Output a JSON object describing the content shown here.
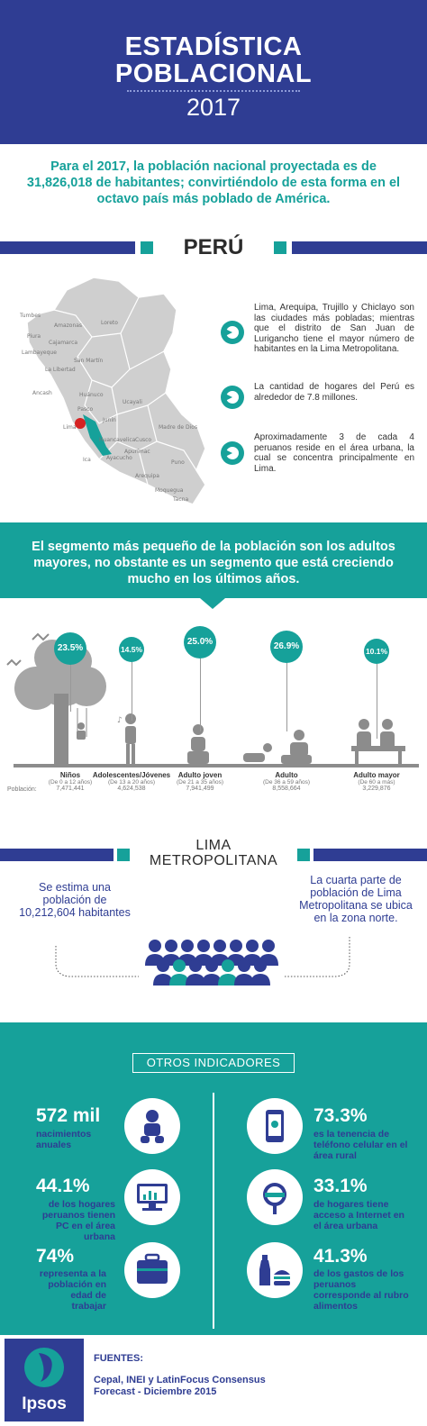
{
  "header": {
    "line1": "ESTADÍSTICA",
    "line2": "POBLACIONAL",
    "year": "2017"
  },
  "intro": "Para el 2017, la población nacional proyectada es de 31,826,018 de habitantes; convirtiéndolo de esta forma en el octavo país más poblado de  América.",
  "peru": {
    "title": "PERÚ",
    "regions": [
      "Tumbes",
      "Amazonas",
      "Loreto",
      "Piura",
      "Cajamarca",
      "Lambayeque",
      "San Martín",
      "La Libertad",
      "Ancash",
      "Huánuco",
      "Ucayali",
      "Pasco",
      "Junín",
      "Lima",
      "Madre de Dios",
      "Huancavelica",
      "Cusco",
      "Ica",
      "Apurímac",
      "Ayacucho",
      "Puno",
      "Arequipa",
      "Moquegua",
      "Tacna"
    ],
    "facts": [
      "Lima, Arequipa, Trujillo y Chiclayo son las ciudades más pobladas; mientras que el distrito de San Juan de Lurigancho tiene el mayor número de habitantes en la Lima Metropolitana.",
      "La cantidad de hogares del Perú es alrededor de 7.8 millones.",
      "Aproximadamente 3 de cada 4 peruanos reside en el área urbana, la cual se concentra principalmente en  Lima."
    ]
  },
  "segment_text": "El segmento más pequeño de la población son los adultos mayores, no obstante es un segmento que está creciendo mucho en los últimos años.",
  "age_groups": {
    "population_label": "Población:",
    "items": [
      {
        "name": "Niños",
        "range": "(De 0 a 12 años)",
        "population": "7,471,441",
        "pct": "23.5%",
        "value": 23.5
      },
      {
        "name": "Adolescentes/Jóvenes",
        "range": "(De 13 a 20 años)",
        "population": "4,624,538",
        "pct": "14.5%",
        "value": 14.5
      },
      {
        "name": "Adulto joven",
        "range": "(De 21 a 35 años)",
        "population": "7,941,499",
        "pct": "25.0%",
        "value": 25.0
      },
      {
        "name": "Adulto",
        "range": "(De 36 a 59 años)",
        "population": "8,558,664",
        "pct": "26.9%",
        "value": 26.9
      },
      {
        "name": "Adulto mayor",
        "range": "(De 60 a más)",
        "population": "3,229,876",
        "pct": "10.1%",
        "value": 10.1
      }
    ]
  },
  "lima": {
    "title_line1": "LIMA",
    "title_line2": "METROPOLITANA",
    "left": "Se estima una población de 10,212,604 habitantes",
    "right": "La cuarta parte de población de Lima Metropolitana se ubica en la zona norte."
  },
  "indicators": {
    "title": "OTROS INDICADORES",
    "items": [
      {
        "num": "572 mil",
        "text": "nacimientos anuales",
        "icon": "baby-icon"
      },
      {
        "num": "73.3%",
        "text": "es la tenencia de teléfono celular en el área rural",
        "icon": "phone-icon"
      },
      {
        "num": "44.1%",
        "text": "de los hogares peruanos tienen PC en el área urbana",
        "icon": "computer-icon"
      },
      {
        "num": "33.1%",
        "text": "de hogares tiene acceso a Internet en el área urbana",
        "icon": "internet-icon"
      },
      {
        "num": "74%",
        "text": "representa a la población en edad de trabajar",
        "icon": "briefcase-icon"
      },
      {
        "num": "41.3%",
        "text": "de los gastos de los peruanos corresponde al rubro alimentos",
        "icon": "food-icon"
      }
    ]
  },
  "footer": {
    "logo": "Ipsos",
    "sources_label": "FUENTES:",
    "sources": "Cepal, INEI y LatinFocus Consensus Forecast - Diciembre 2015"
  },
  "colors": {
    "navy": "#2f3d93",
    "teal": "#16a19a",
    "gray": "#8c8c8c"
  }
}
